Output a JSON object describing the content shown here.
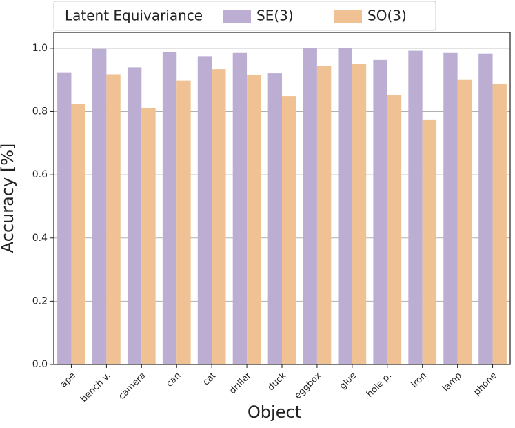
{
  "chart_data": {
    "type": "bar",
    "xlabel": "Object",
    "ylabel": "Accuracy [%]",
    "legend_title": "Latent Equivariance",
    "legend_position": "top",
    "categories": [
      "ape",
      "bench v.",
      "camera",
      "can",
      "cat",
      "driller",
      "duck",
      "eggbox",
      "glue",
      "hole p.",
      "iron",
      "lamp",
      "phone"
    ],
    "series": [
      {
        "name": "SE(3)",
        "color": "#bcaed3",
        "values": [
          0.922,
          0.998,
          0.94,
          0.987,
          0.975,
          0.985,
          0.921,
          1.0,
          1.0,
          0.963,
          0.992,
          0.985,
          0.983
        ]
      },
      {
        "name": "SO(3)",
        "color": "#f0c293",
        "values": [
          0.825,
          0.918,
          0.81,
          0.898,
          0.934,
          0.916,
          0.849,
          0.944,
          0.95,
          0.853,
          0.773,
          0.9,
          0.887
        ]
      }
    ],
    "ylim": [
      0,
      1.05
    ],
    "yticks": [
      {
        "value": 0,
        "label": "0.0"
      },
      0.2,
      0.4,
      0.6,
      0.8,
      {
        "value": 1,
        "label": "1.0"
      }
    ],
    "grid": true
  }
}
